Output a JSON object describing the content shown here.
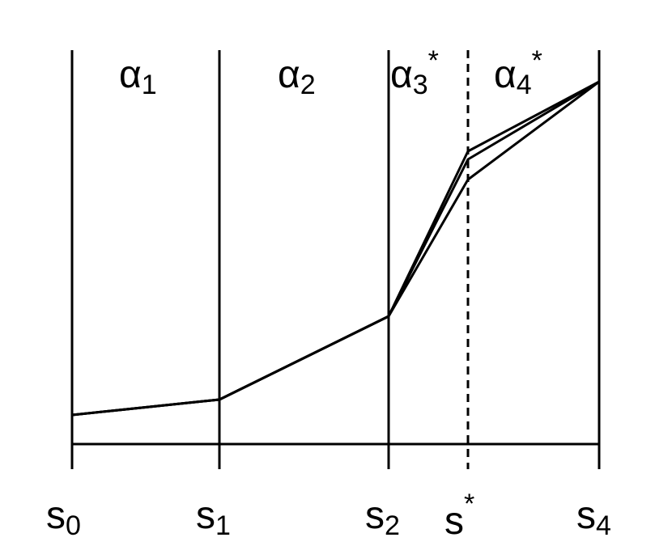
{
  "chart_data": {
    "type": "line",
    "colors": {
      "line": "#000000",
      "background": "#ffffff"
    },
    "x_ticks": [
      {
        "base": "s",
        "sub": "0",
        "sup": ""
      },
      {
        "base": "s",
        "sub": "1",
        "sup": ""
      },
      {
        "base": "s",
        "sub": "2",
        "sup": ""
      },
      {
        "base": "s",
        "sub": "",
        "sup": "*"
      },
      {
        "base": "s",
        "sub": "4",
        "sup": ""
      }
    ],
    "regions": [
      {
        "base": "α",
        "sub": "1",
        "sup": ""
      },
      {
        "base": "α",
        "sub": "2",
        "sup": ""
      },
      {
        "base": "α",
        "sub": "3",
        "sup": "*"
      },
      {
        "base": "α",
        "sub": "4",
        "sup": "*"
      }
    ],
    "dashed_divider_at": "s*"
  }
}
